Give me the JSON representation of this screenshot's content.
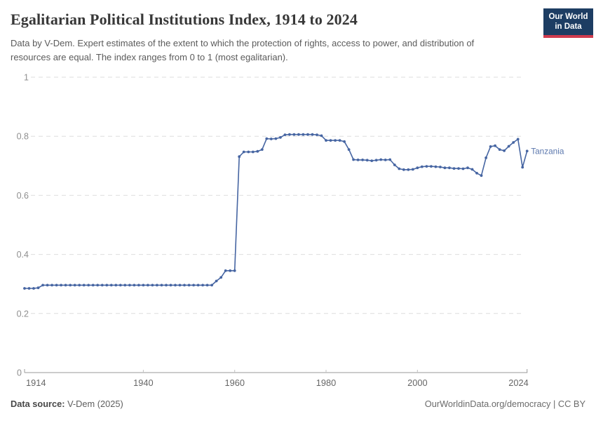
{
  "header": {
    "title": "Egalitarian Political Institutions Index, 1914 to 2024",
    "subtitle": "Data by V-Dem. Expert estimates of the extent to which the protection of rights, access to power, and distribution of resources are equal. The index ranges from 0 to 1 (most egalitarian).",
    "logo_line1": "Our World",
    "logo_line2": "in Data"
  },
  "footer": {
    "source_label": "Data source:",
    "source_value": " V-Dem (2025)",
    "license": "OurWorldinData.org/democracy | CC BY"
  },
  "colors": {
    "series": "#4665a2",
    "end_label": "#5b77ad",
    "grid": "#dedede",
    "axis": "#9a9a9a",
    "y_tick_label": "#8f8f8f",
    "x_tick_label": "#666666",
    "logo_bg": "#1d3d63",
    "logo_accent": "#cf3b4e"
  },
  "chart_data": {
    "type": "line",
    "title": "Egalitarian Political Institutions Index, 1914 to 2024",
    "xlabel": "",
    "ylabel": "",
    "xlim": [
      1914,
      2024
    ],
    "ylim": [
      0,
      1
    ],
    "x_ticks": [
      1914,
      1940,
      1960,
      1980,
      2000,
      2024
    ],
    "y_ticks": [
      0,
      0.2,
      0.4,
      0.6,
      0.8,
      1
    ],
    "y_tick_labels": [
      "0",
      "0.2",
      "0.4",
      "0.6",
      "0.8",
      "1"
    ],
    "grid": "horizontal-dashed",
    "legend_position": "end-of-line-label",
    "series": [
      {
        "name": "Tanzania",
        "color": "#4665a2",
        "points": [
          [
            1914,
            0.285
          ],
          [
            1915,
            0.285
          ],
          [
            1916,
            0.285
          ],
          [
            1917,
            0.287
          ],
          [
            1918,
            0.296
          ],
          [
            1919,
            0.296
          ],
          [
            1920,
            0.296
          ],
          [
            1921,
            0.296
          ],
          [
            1922,
            0.296
          ],
          [
            1923,
            0.296
          ],
          [
            1924,
            0.296
          ],
          [
            1925,
            0.296
          ],
          [
            1926,
            0.296
          ],
          [
            1927,
            0.296
          ],
          [
            1928,
            0.296
          ],
          [
            1929,
            0.296
          ],
          [
            1930,
            0.296
          ],
          [
            1931,
            0.296
          ],
          [
            1932,
            0.296
          ],
          [
            1933,
            0.296
          ],
          [
            1934,
            0.296
          ],
          [
            1935,
            0.296
          ],
          [
            1936,
            0.296
          ],
          [
            1937,
            0.296
          ],
          [
            1938,
            0.296
          ],
          [
            1939,
            0.296
          ],
          [
            1940,
            0.296
          ],
          [
            1941,
            0.296
          ],
          [
            1942,
            0.296
          ],
          [
            1943,
            0.296
          ],
          [
            1944,
            0.296
          ],
          [
            1945,
            0.296
          ],
          [
            1946,
            0.296
          ],
          [
            1947,
            0.296
          ],
          [
            1948,
            0.296
          ],
          [
            1949,
            0.296
          ],
          [
            1950,
            0.296
          ],
          [
            1951,
            0.296
          ],
          [
            1952,
            0.296
          ],
          [
            1953,
            0.296
          ],
          [
            1954,
            0.296
          ],
          [
            1955,
            0.296
          ],
          [
            1956,
            0.31
          ],
          [
            1957,
            0.322
          ],
          [
            1958,
            0.345
          ],
          [
            1959,
            0.345
          ],
          [
            1960,
            0.345
          ],
          [
            1961,
            0.731
          ],
          [
            1962,
            0.747
          ],
          [
            1963,
            0.747
          ],
          [
            1964,
            0.747
          ],
          [
            1965,
            0.749
          ],
          [
            1966,
            0.755
          ],
          [
            1967,
            0.792
          ],
          [
            1968,
            0.791
          ],
          [
            1969,
            0.792
          ],
          [
            1970,
            0.796
          ],
          [
            1971,
            0.805
          ],
          [
            1972,
            0.806
          ],
          [
            1973,
            0.806
          ],
          [
            1974,
            0.806
          ],
          [
            1975,
            0.806
          ],
          [
            1976,
            0.806
          ],
          [
            1977,
            0.806
          ],
          [
            1978,
            0.805
          ],
          [
            1979,
            0.802
          ],
          [
            1980,
            0.786
          ],
          [
            1981,
            0.786
          ],
          [
            1982,
            0.786
          ],
          [
            1983,
            0.786
          ],
          [
            1984,
            0.782
          ],
          [
            1985,
            0.755
          ],
          [
            1986,
            0.721
          ],
          [
            1987,
            0.72
          ],
          [
            1988,
            0.72
          ],
          [
            1989,
            0.719
          ],
          [
            1990,
            0.717
          ],
          [
            1991,
            0.719
          ],
          [
            1992,
            0.721
          ],
          [
            1993,
            0.72
          ],
          [
            1994,
            0.721
          ],
          [
            1995,
            0.703
          ],
          [
            1996,
            0.69
          ],
          [
            1997,
            0.687
          ],
          [
            1998,
            0.687
          ],
          [
            1999,
            0.688
          ],
          [
            2000,
            0.693
          ],
          [
            2001,
            0.697
          ],
          [
            2002,
            0.698
          ],
          [
            2003,
            0.698
          ],
          [
            2004,
            0.697
          ],
          [
            2005,
            0.696
          ],
          [
            2006,
            0.693
          ],
          [
            2007,
            0.693
          ],
          [
            2008,
            0.691
          ],
          [
            2009,
            0.691
          ],
          [
            2010,
            0.69
          ],
          [
            2011,
            0.693
          ],
          [
            2012,
            0.688
          ],
          [
            2013,
            0.675
          ],
          [
            2014,
            0.667
          ],
          [
            2015,
            0.727
          ],
          [
            2016,
            0.765
          ],
          [
            2017,
            0.768
          ],
          [
            2018,
            0.755
          ],
          [
            2019,
            0.751
          ],
          [
            2020,
            0.766
          ],
          [
            2021,
            0.779
          ],
          [
            2022,
            0.79
          ],
          [
            2023,
            0.695
          ],
          [
            2024,
            0.75
          ]
        ]
      }
    ]
  }
}
